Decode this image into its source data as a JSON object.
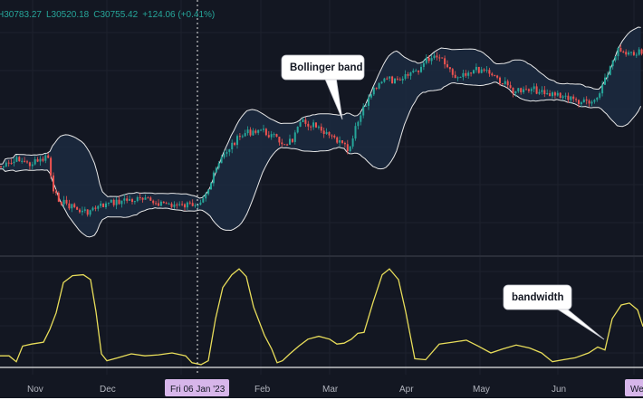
{
  "legend": {
    "open_label": "H",
    "open_value": "30783.27",
    "low_label": "L",
    "low_value": "30520.18",
    "close_label": "C",
    "close_value": "30755.42",
    "change": "+124.06 (+0.41%)"
  },
  "colors": {
    "background": "#131722",
    "grid": "#1e222d",
    "up": "#26a69a",
    "down": "#ef5350",
    "band": "#e8e8e8",
    "band_fill": "#1c2a40",
    "bandwidth_line": "#e8dd5a",
    "cursor_label_bg": "#d7b6ea",
    "axis_text": "#b2b5be"
  },
  "annotations": {
    "bollinger_label": "Bollinger band",
    "bandwidth_label": "bandwidth"
  },
  "cursor": {
    "date_label": "Fri 06 Jan '23"
  },
  "chart_data": {
    "type": "candlestick",
    "time_axis_labels": [
      "Nov",
      "Dec",
      "Feb",
      "Mar",
      "Apr",
      "May",
      "Jun",
      "We"
    ],
    "price_panel": {
      "indicator": "Bollinger Bands",
      "close_path": [
        [
          0,
          0.67
        ],
        [
          10,
          0.66
        ],
        [
          20,
          0.63
        ],
        [
          30,
          0.66
        ],
        [
          45,
          0.64
        ],
        [
          52,
          0.62
        ],
        [
          58,
          0.8
        ],
        [
          68,
          0.84
        ],
        [
          78,
          0.86
        ],
        [
          90,
          0.89
        ],
        [
          100,
          0.88
        ],
        [
          110,
          0.86
        ],
        [
          125,
          0.84
        ],
        [
          140,
          0.83
        ],
        [
          155,
          0.83
        ],
        [
          170,
          0.84
        ],
        [
          185,
          0.85
        ],
        [
          200,
          0.86
        ],
        [
          212,
          0.85
        ],
        [
          220,
          0.83
        ],
        [
          230,
          0.77
        ],
        [
          238,
          0.68
        ],
        [
          248,
          0.6
        ],
        [
          258,
          0.55
        ],
        [
          270,
          0.51
        ],
        [
          285,
          0.49
        ],
        [
          298,
          0.52
        ],
        [
          312,
          0.56
        ],
        [
          322,
          0.54
        ],
        [
          332,
          0.46
        ],
        [
          345,
          0.47
        ],
        [
          355,
          0.51
        ],
        [
          370,
          0.54
        ],
        [
          385,
          0.6
        ],
        [
          392,
          0.48
        ],
        [
          400,
          0.4
        ],
        [
          408,
          0.32
        ],
        [
          418,
          0.26
        ],
        [
          428,
          0.25
        ],
        [
          440,
          0.27
        ],
        [
          452,
          0.22
        ],
        [
          462,
          0.2
        ],
        [
          472,
          0.15
        ],
        [
          482,
          0.13
        ],
        [
          492,
          0.17
        ],
        [
          500,
          0.24
        ],
        [
          510,
          0.22
        ],
        [
          520,
          0.21
        ],
        [
          532,
          0.2
        ],
        [
          542,
          0.22
        ],
        [
          552,
          0.26
        ],
        [
          565,
          0.3
        ],
        [
          578,
          0.31
        ],
        [
          590,
          0.3
        ],
        [
          602,
          0.33
        ],
        [
          612,
          0.32
        ],
        [
          622,
          0.33
        ],
        [
          632,
          0.35
        ],
        [
          642,
          0.36
        ],
        [
          652,
          0.37
        ],
        [
          662,
          0.32
        ],
        [
          670,
          0.22
        ],
        [
          680,
          0.11
        ],
        [
          692,
          0.14
        ],
        [
          702,
          0.12
        ],
        [
          710,
          0.13
        ]
      ]
    },
    "bandwidth_panel": {
      "indicator": "Bollinger Bandwidth",
      "path": [
        [
          0,
          0.9
        ],
        [
          10,
          0.9
        ],
        [
          18,
          0.96
        ],
        [
          25,
          0.8
        ],
        [
          35,
          0.78
        ],
        [
          48,
          0.76
        ],
        [
          55,
          0.63
        ],
        [
          62,
          0.46
        ],
        [
          70,
          0.15
        ],
        [
          80,
          0.08
        ],
        [
          92,
          0.07
        ],
        [
          100,
          0.12
        ],
        [
          106,
          0.45
        ],
        [
          112,
          0.88
        ],
        [
          118,
          0.95
        ],
        [
          130,
          0.92
        ],
        [
          145,
          0.88
        ],
        [
          160,
          0.9
        ],
        [
          175,
          0.89
        ],
        [
          190,
          0.87
        ],
        [
          205,
          0.9
        ],
        [
          212,
          0.97
        ],
        [
          222,
          0.99
        ],
        [
          230,
          0.95
        ],
        [
          238,
          0.52
        ],
        [
          246,
          0.2
        ],
        [
          256,
          0.07
        ],
        [
          264,
          0.01
        ],
        [
          272,
          0.09
        ],
        [
          280,
          0.4
        ],
        [
          292,
          0.69
        ],
        [
          300,
          0.83
        ],
        [
          306,
          0.97
        ],
        [
          312,
          0.95
        ],
        [
          320,
          0.88
        ],
        [
          330,
          0.8
        ],
        [
          340,
          0.73
        ],
        [
          352,
          0.7
        ],
        [
          364,
          0.73
        ],
        [
          372,
          0.78
        ],
        [
          380,
          0.77
        ],
        [
          388,
          0.73
        ],
        [
          395,
          0.67
        ],
        [
          402,
          0.66
        ],
        [
          412,
          0.35
        ],
        [
          422,
          0.07
        ],
        [
          430,
          0.01
        ],
        [
          440,
          0.12
        ],
        [
          448,
          0.45
        ],
        [
          458,
          0.93
        ],
        [
          470,
          0.94
        ],
        [
          485,
          0.78
        ],
        [
          500,
          0.76
        ],
        [
          515,
          0.74
        ],
        [
          528,
          0.8
        ],
        [
          542,
          0.87
        ],
        [
          555,
          0.83
        ],
        [
          570,
          0.79
        ],
        [
          585,
          0.82
        ],
        [
          598,
          0.87
        ],
        [
          610,
          0.96
        ],
        [
          622,
          0.94
        ],
        [
          635,
          0.92
        ],
        [
          650,
          0.87
        ],
        [
          660,
          0.81
        ],
        [
          668,
          0.84
        ],
        [
          676,
          0.52
        ],
        [
          686,
          0.38
        ],
        [
          695,
          0.36
        ],
        [
          704,
          0.43
        ],
        [
          710,
          0.6
        ]
      ]
    }
  }
}
